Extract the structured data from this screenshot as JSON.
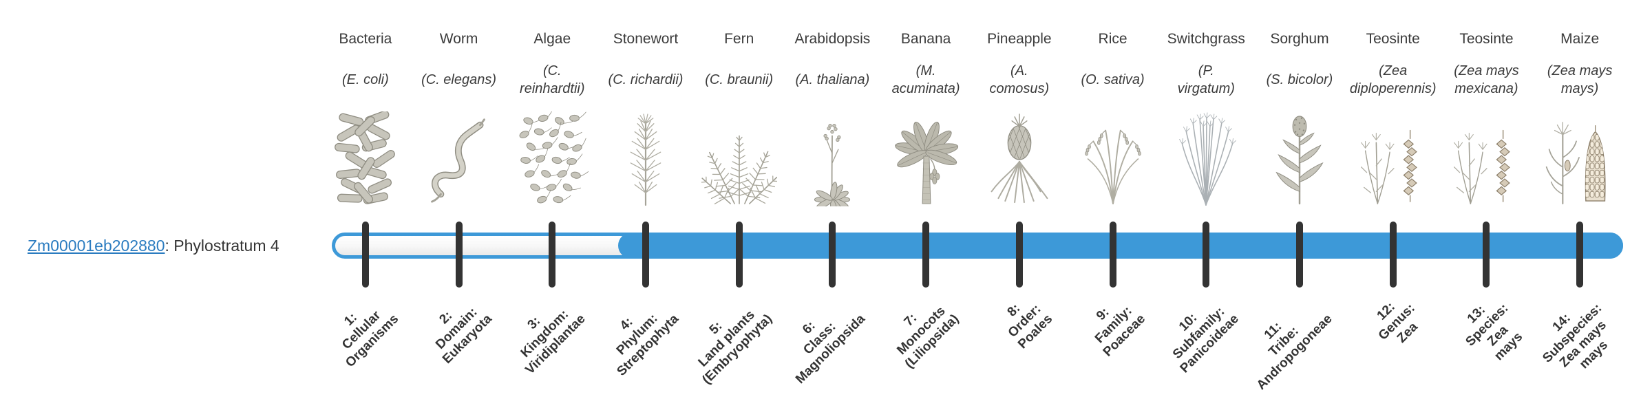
{
  "gene": {
    "id": "Zm00001eb202880",
    "suffix": ": Phylostratum 4",
    "phylostratum": 4
  },
  "bar": {
    "fill_color": "#3d99d8",
    "track_border_color": "#3d99d8",
    "track_background": "#f7f7f7",
    "tick_color": "#333333",
    "filled_from_stratum": 4,
    "total_strata": 14
  },
  "organisms": [
    {
      "name": "Bacteria",
      "latin": "(E. coli)",
      "icon": "bacteria",
      "stratum_label": "1:\nCellular\nOrganisms"
    },
    {
      "name": "Worm",
      "latin": "(C. elegans)",
      "icon": "worm",
      "stratum_label": "2:\nDomain:\nEukaryota"
    },
    {
      "name": "Algae",
      "latin": "(C.\nreinhardtii)",
      "icon": "algae",
      "stratum_label": "3:\nKingdom:\nViridiplantae"
    },
    {
      "name": "Stonewort",
      "latin": "(C. richardii)",
      "icon": "stonewort",
      "stratum_label": "4:\nPhylum:\nStreptophyta"
    },
    {
      "name": "Fern",
      "latin": "(C. braunii)",
      "icon": "fern",
      "stratum_label": "5:\nLand plants\n(Embryophyta)"
    },
    {
      "name": "Arabidopsis",
      "latin": "(A. thaliana)",
      "icon": "arabidopsis",
      "stratum_label": "6:\nClass:\nMagnoliopsida"
    },
    {
      "name": "Banana",
      "latin": "(M.\nacuminata)",
      "icon": "banana",
      "stratum_label": "7:\nMonocots\n(Liliopsida)"
    },
    {
      "name": "Pineapple",
      "latin": "(A.\ncomosus)",
      "icon": "pineapple",
      "stratum_label": "8:\nOrder:\nPoales"
    },
    {
      "name": "Rice",
      "latin": "(O. sativa)",
      "icon": "rice",
      "stratum_label": "9:\nFamily:\nPoaceae"
    },
    {
      "name": "Switchgrass",
      "latin": "(P.\nvirgatum)",
      "icon": "switchgrass",
      "stratum_label": "10:\nSubfamily:\nPanicoideae"
    },
    {
      "name": "Sorghum",
      "latin": "(S. bicolor)",
      "icon": "sorghum",
      "stratum_label": "11:\nTribe:\nAndropogoneae"
    },
    {
      "name": "Teosinte",
      "latin": "(Zea\ndiploperennis)",
      "icon": "teosinte",
      "stratum_label": "12:\nGenus:\nZea"
    },
    {
      "name": "Teosinte",
      "latin": "(Zea mays\nmexicana)",
      "icon": "teosinte",
      "stratum_label": "13:\nSpecies:\nZea\nmays"
    },
    {
      "name": "Maize",
      "latin": "(Zea mays\nmays)",
      "icon": "maize",
      "stratum_label": "14:\nSubspecies:\nZea mays\nmays"
    }
  ]
}
